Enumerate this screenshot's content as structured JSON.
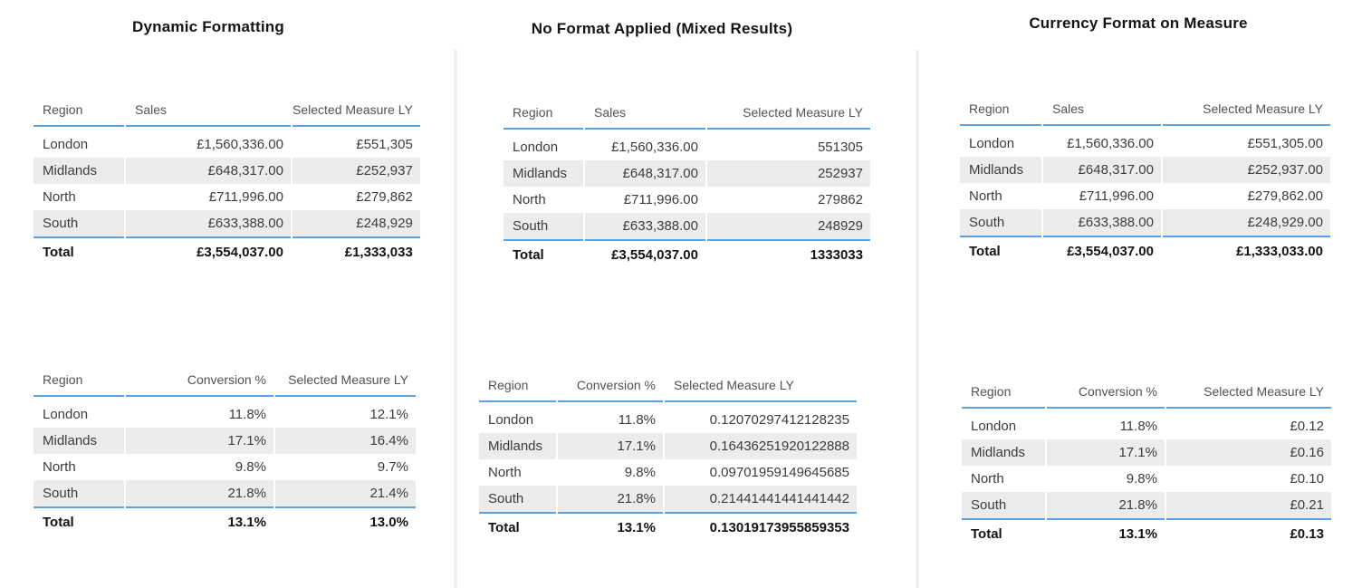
{
  "colors": {
    "accent_blue": "#5EA2DB",
    "row_band": "#ECECEC",
    "divider": "#F0F0F0"
  },
  "panels": [
    {
      "title": "Dynamic Formatting",
      "tables": [
        {
          "columns": [
            "Region",
            "Sales",
            "Selected Measure LY"
          ],
          "rows": [
            [
              "London",
              "£1,560,336.00",
              "£551,305"
            ],
            [
              "Midlands",
              "£648,317.00",
              "£252,937"
            ],
            [
              "North",
              "£711,996.00",
              "£279,862"
            ],
            [
              "South",
              "£633,388.00",
              "£248,929"
            ]
          ],
          "total": [
            "Total",
            "£3,554,037.00",
            "£1,333,033"
          ]
        },
        {
          "columns": [
            "Region",
            "Conversion %",
            "Selected Measure LY"
          ],
          "rows": [
            [
              "London",
              "11.8%",
              "12.1%"
            ],
            [
              "Midlands",
              "17.1%",
              "16.4%"
            ],
            [
              "North",
              "9.8%",
              "9.7%"
            ],
            [
              "South",
              "21.8%",
              "21.4%"
            ]
          ],
          "total": [
            "Total",
            "13.1%",
            "13.0%"
          ]
        }
      ]
    },
    {
      "title": "No Format Applied (Mixed Results)",
      "tables": [
        {
          "columns": [
            "Region",
            "Sales",
            "Selected Measure LY"
          ],
          "rows": [
            [
              "London",
              "£1,560,336.00",
              "551305"
            ],
            [
              "Midlands",
              "£648,317.00",
              "252937"
            ],
            [
              "North",
              "£711,996.00",
              "279862"
            ],
            [
              "South",
              "£633,388.00",
              "248929"
            ]
          ],
          "total": [
            "Total",
            "£3,554,037.00",
            "1333033"
          ]
        },
        {
          "columns": [
            "Region",
            "Conversion %",
            "Selected Measure LY"
          ],
          "rows": [
            [
              "London",
              "11.8%",
              "0.12070297412128235"
            ],
            [
              "Midlands",
              "17.1%",
              "0.16436251920122888"
            ],
            [
              "North",
              "9.8%",
              "0.09701959149645685"
            ],
            [
              "South",
              "21.8%",
              "0.21441441441441442"
            ]
          ],
          "total": [
            "Total",
            "13.1%",
            "0.13019173955859353"
          ]
        }
      ]
    },
    {
      "title": "Currency Format on Measure",
      "tables": [
        {
          "columns": [
            "Region",
            "Sales",
            "Selected Measure LY"
          ],
          "rows": [
            [
              "London",
              "£1,560,336.00",
              "£551,305.00"
            ],
            [
              "Midlands",
              "£648,317.00",
              "£252,937.00"
            ],
            [
              "North",
              "£711,996.00",
              "£279,862.00"
            ],
            [
              "South",
              "£633,388.00",
              "£248,929.00"
            ]
          ],
          "total": [
            "Total",
            "£3,554,037.00",
            "£1,333,033.00"
          ]
        },
        {
          "columns": [
            "Region",
            "Conversion %",
            "Selected Measure LY"
          ],
          "rows": [
            [
              "London",
              "11.8%",
              "£0.12"
            ],
            [
              "Midlands",
              "17.1%",
              "£0.16"
            ],
            [
              "North",
              "9.8%",
              "£0.10"
            ],
            [
              "South",
              "21.8%",
              "£0.21"
            ]
          ],
          "total": [
            "Total",
            "13.1%",
            "£0.13"
          ]
        }
      ]
    }
  ]
}
